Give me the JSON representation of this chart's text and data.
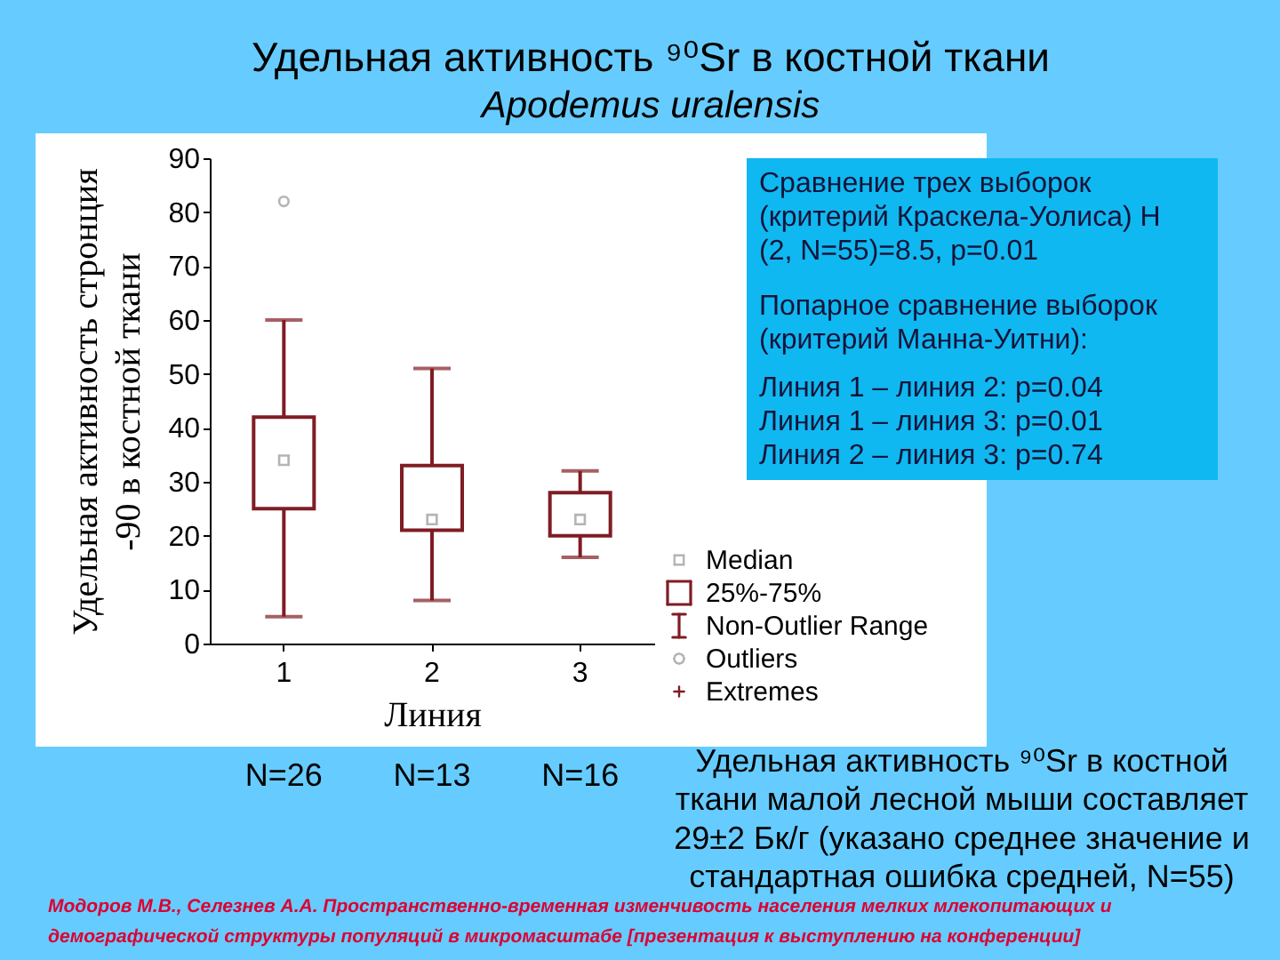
{
  "chart_data": {
    "type": "box",
    "title": "Удельная активность ⁹⁰Sr в костной ткани",
    "subtitle": "Apodemus uralensis",
    "xlabel": "Линия",
    "ylabel": "Удельная активность стронция\n-90 в костной ткани",
    "categories": [
      "1",
      "2",
      "3"
    ],
    "color": "#801c24",
    "boxes": [
      {
        "low": 5,
        "q1": 25,
        "median": 34,
        "q3": 42,
        "high": 60,
        "outliers": [
          82
        ]
      },
      {
        "low": 8,
        "q1": 21,
        "median": 23,
        "q3": 33,
        "high": 51
      },
      {
        "low": 16,
        "q1": 20,
        "median": 23,
        "q3": 28,
        "high": 32
      }
    ],
    "ylim": [
      0,
      90
    ],
    "yticks": [
      0,
      10,
      20,
      30,
      40,
      50,
      60,
      70,
      80,
      90
    ],
    "grid": false,
    "annotations": [
      "Сравнение трех выборок\n(критерий Краскела-Уолиса) H\n(2, N=55)=8.5, p=0.01",
      "Попарное сравнение выборок\n(критерий Манна-Уитни):",
      "Линия 1 – линия 2: p=0.04\nЛиния 1 – линия 3: p=0.01\nЛиния 2 – линия 3: p=0.74",
      "Median",
      "25%-75%",
      "Non-Outlier Range",
      "Outliers",
      "Extremes",
      "N=26",
      "N=13",
      "N=16",
      "Удельная активность ⁹⁰Sr в костной\nткани малой лесной мыши составляет\n29±2 Бк/г (указано среднее значение и\nстандартная ошибка средней, N=55)",
      "Модоров М.В., Селезнев А.А. Пространственно-временная изменчивость населения мелких млекопитающих и\nдемографической структуры популяций в микромасштабе [презентация к выступлению на конференции]"
    ]
  }
}
